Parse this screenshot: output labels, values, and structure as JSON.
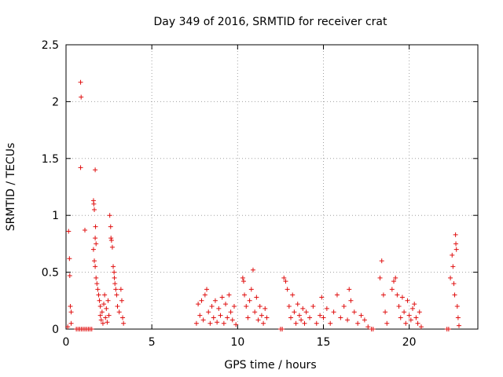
{
  "chart_data": {
    "type": "scatter",
    "title": "Day 349 of 2016, SRMTID for receiver crat",
    "xlabel": "GPS time / hours",
    "ylabel": "SRMTID / TECUs",
    "xlim": [
      0,
      24
    ],
    "ylim": [
      0,
      2.5
    ],
    "xticks": [
      0,
      5,
      10,
      15,
      20
    ],
    "xtick_labels": [
      "0",
      "5",
      "10",
      "15",
      "20"
    ],
    "yticks": [
      0,
      0.5,
      1,
      1.5,
      2,
      2.5
    ],
    "ytick_labels": [
      "0",
      "0.5",
      "1",
      "1.5",
      "2",
      "2.5"
    ],
    "grid": true,
    "marker": "+",
    "color": "#e01010",
    "series": [
      {
        "name": "SRMTID",
        "points": [
          [
            0.1,
            0.02
          ],
          [
            0.15,
            0.86
          ],
          [
            0.2,
            0.62
          ],
          [
            0.22,
            0.47
          ],
          [
            0.25,
            0.2
          ],
          [
            0.3,
            0.15
          ],
          [
            0.3,
            0.05
          ],
          [
            0.6,
            0.0
          ],
          [
            0.7,
            0.0
          ],
          [
            0.8,
            0.0
          ],
          [
            0.85,
            2.17
          ],
          [
            0.88,
            2.04
          ],
          [
            0.85,
            1.42
          ],
          [
            0.9,
            0.0
          ],
          [
            1.0,
            0.0
          ],
          [
            1.1,
            0.0
          ],
          [
            1.1,
            0.87
          ],
          [
            1.2,
            0.0
          ],
          [
            1.3,
            0.0
          ],
          [
            1.4,
            0.0
          ],
          [
            1.5,
            0.0
          ],
          [
            1.6,
            1.13
          ],
          [
            1.62,
            1.1
          ],
          [
            1.65,
            1.05
          ],
          [
            1.7,
            1.4
          ],
          [
            1.7,
            0.8
          ],
          [
            1.72,
            0.9
          ],
          [
            1.75,
            0.75
          ],
          [
            1.6,
            0.7
          ],
          [
            1.65,
            0.6
          ],
          [
            1.7,
            0.55
          ],
          [
            1.75,
            0.45
          ],
          [
            1.8,
            0.4
          ],
          [
            1.85,
            0.35
          ],
          [
            1.9,
            0.3
          ],
          [
            1.95,
            0.25
          ],
          [
            2.0,
            0.2
          ],
          [
            2.0,
            0.12
          ],
          [
            2.05,
            0.08
          ],
          [
            2.1,
            0.15
          ],
          [
            2.15,
            0.05
          ],
          [
            2.2,
            0.22
          ],
          [
            2.25,
            0.3
          ],
          [
            2.3,
            0.1
          ],
          [
            2.35,
            0.18
          ],
          [
            2.4,
            0.06
          ],
          [
            2.45,
            0.25
          ],
          [
            2.5,
            0.12
          ],
          [
            2.55,
            1.0
          ],
          [
            2.6,
            0.9
          ],
          [
            2.62,
            0.8
          ],
          [
            2.65,
            0.78
          ],
          [
            2.7,
            0.72
          ],
          [
            2.75,
            0.55
          ],
          [
            2.8,
            0.5
          ],
          [
            2.82,
            0.45
          ],
          [
            2.85,
            0.4
          ],
          [
            2.9,
            0.35
          ],
          [
            2.95,
            0.3
          ],
          [
            3.0,
            0.2
          ],
          [
            3.1,
            0.15
          ],
          [
            3.2,
            0.35
          ],
          [
            3.25,
            0.25
          ],
          [
            3.3,
            0.1
          ],
          [
            3.35,
            0.05
          ],
          [
            7.6,
            0.05
          ],
          [
            7.7,
            0.22
          ],
          [
            7.8,
            0.12
          ],
          [
            7.9,
            0.25
          ],
          [
            8.0,
            0.08
          ],
          [
            8.1,
            0.3
          ],
          [
            8.2,
            0.35
          ],
          [
            8.3,
            0.15
          ],
          [
            8.4,
            0.05
          ],
          [
            8.5,
            0.2
          ],
          [
            8.6,
            0.1
          ],
          [
            8.7,
            0.25
          ],
          [
            8.8,
            0.06
          ],
          [
            8.9,
            0.18
          ],
          [
            9.0,
            0.12
          ],
          [
            9.1,
            0.28
          ],
          [
            9.2,
            0.05
          ],
          [
            9.3,
            0.22
          ],
          [
            9.4,
            0.1
          ],
          [
            9.5,
            0.3
          ],
          [
            9.6,
            0.15
          ],
          [
            9.7,
            0.08
          ],
          [
            9.8,
            0.2
          ],
          [
            9.9,
            0.04
          ],
          [
            10.3,
            0.45
          ],
          [
            10.35,
            0.42
          ],
          [
            10.4,
            0.3
          ],
          [
            10.5,
            0.2
          ],
          [
            10.6,
            0.1
          ],
          [
            10.7,
            0.25
          ],
          [
            10.8,
            0.35
          ],
          [
            10.9,
            0.52
          ],
          [
            11.0,
            0.15
          ],
          [
            11.1,
            0.28
          ],
          [
            11.2,
            0.08
          ],
          [
            11.3,
            0.2
          ],
          [
            11.4,
            0.12
          ],
          [
            11.5,
            0.05
          ],
          [
            11.6,
            0.18
          ],
          [
            11.7,
            0.1
          ],
          [
            12.5,
            0.0
          ],
          [
            12.6,
            0.0
          ],
          [
            12.7,
            0.45
          ],
          [
            12.8,
            0.42
          ],
          [
            12.9,
            0.35
          ],
          [
            13.0,
            0.2
          ],
          [
            13.1,
            0.1
          ],
          [
            13.2,
            0.3
          ],
          [
            13.3,
            0.15
          ],
          [
            13.4,
            0.05
          ],
          [
            13.5,
            0.22
          ],
          [
            13.6,
            0.12
          ],
          [
            13.7,
            0.08
          ],
          [
            13.8,
            0.18
          ],
          [
            13.9,
            0.05
          ],
          [
            14.0,
            0.15
          ],
          [
            14.2,
            0.1
          ],
          [
            14.4,
            0.2
          ],
          [
            14.6,
            0.05
          ],
          [
            14.8,
            0.12
          ],
          [
            14.9,
            0.28
          ],
          [
            15.0,
            0.1
          ],
          [
            15.2,
            0.18
          ],
          [
            15.4,
            0.05
          ],
          [
            15.6,
            0.15
          ],
          [
            15.8,
            0.3
          ],
          [
            16.0,
            0.1
          ],
          [
            16.2,
            0.2
          ],
          [
            16.4,
            0.08
          ],
          [
            16.5,
            0.35
          ],
          [
            16.6,
            0.25
          ],
          [
            16.8,
            0.15
          ],
          [
            17.0,
            0.05
          ],
          [
            17.2,
            0.12
          ],
          [
            17.4,
            0.08
          ],
          [
            17.6,
            0.02
          ],
          [
            17.8,
            0.0
          ],
          [
            17.9,
            0.0
          ],
          [
            18.3,
            0.45
          ],
          [
            18.4,
            0.6
          ],
          [
            18.5,
            0.3
          ],
          [
            18.6,
            0.15
          ],
          [
            18.7,
            0.05
          ],
          [
            19.0,
            0.35
          ],
          [
            19.1,
            0.42
          ],
          [
            19.2,
            0.45
          ],
          [
            19.3,
            0.3
          ],
          [
            19.4,
            0.2
          ],
          [
            19.5,
            0.1
          ],
          [
            19.6,
            0.28
          ],
          [
            19.7,
            0.15
          ],
          [
            19.8,
            0.05
          ],
          [
            19.9,
            0.25
          ],
          [
            20.0,
            0.12
          ],
          [
            20.1,
            0.08
          ],
          [
            20.2,
            0.18
          ],
          [
            20.3,
            0.22
          ],
          [
            20.4,
            0.1
          ],
          [
            20.5,
            0.05
          ],
          [
            20.6,
            0.15
          ],
          [
            20.7,
            0.02
          ],
          [
            22.2,
            0.0
          ],
          [
            22.3,
            0.0
          ],
          [
            22.4,
            0.45
          ],
          [
            22.5,
            0.65
          ],
          [
            22.55,
            0.55
          ],
          [
            22.6,
            0.4
          ],
          [
            22.65,
            0.3
          ],
          [
            22.7,
            0.83
          ],
          [
            22.72,
            0.75
          ],
          [
            22.75,
            0.7
          ],
          [
            22.8,
            0.2
          ],
          [
            22.85,
            0.1
          ],
          [
            22.9,
            0.03
          ]
        ]
      }
    ]
  }
}
